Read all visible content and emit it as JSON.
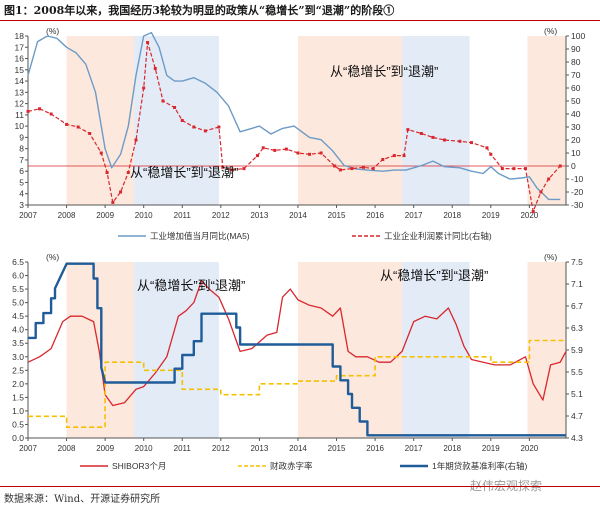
{
  "title": "图1：2008年以来，我国经历3轮较为明显的政策从“稳增长”到“退潮”的阶段①",
  "source": "数据来源：Wind、开源证券研究所",
  "watermark": "赵伟宏观探索",
  "colors": {
    "shade_peach": "#fce8dc",
    "shade_blue": "#e3ebf7",
    "blue_line": "#6d9bc7",
    "red_line": "#d9272e",
    "pink_line": "#f08585",
    "gold": "#f5c000",
    "navy": "#1f5c99"
  },
  "chart_data": [
    {
      "type": "line",
      "id": "top",
      "x_ticks": [
        "2007",
        "2008",
        "2009",
        "2010",
        "2011",
        "2012",
        "2013",
        "2014",
        "2015",
        "2016",
        "2017",
        "2018",
        "2019",
        "2020"
      ],
      "xlim": [
        2007,
        2020.95
      ],
      "left_axis": {
        "unit": "(%)",
        "ylim": [
          3,
          18
        ],
        "ticks": [
          3,
          4,
          5,
          6,
          7,
          8,
          9,
          10,
          11,
          12,
          13,
          14,
          15,
          16,
          17,
          18
        ]
      },
      "right_axis": {
        "unit": "(%)",
        "ylim": [
          -30,
          100
        ],
        "ticks": [
          -30,
          -20,
          -10,
          0,
          10,
          20,
          30,
          40,
          50,
          60,
          70,
          80,
          90,
          100
        ]
      },
      "reference_line_right": 0,
      "annotations": [
        "从“稳增长”到“退潮”",
        "从“稳增长”到“退潮”"
      ],
      "shaded_periods": [
        {
          "from": 2008.0,
          "to": 2009.75,
          "color": "peach"
        },
        {
          "from": 2009.75,
          "to": 2011.95,
          "color": "blue"
        },
        {
          "from": 2014.0,
          "to": 2016.7,
          "color": "peach"
        },
        {
          "from": 2016.7,
          "to": 2018.45,
          "color": "blue"
        },
        {
          "from": 2019.95,
          "to": 2020.95,
          "color": "peach"
        }
      ],
      "series": [
        {
          "name": "工业增加值当月同比(MA5)",
          "axis": "left",
          "style": "solid",
          "x": [
            2007.0,
            2007.25,
            2007.5,
            2007.75,
            2008.0,
            2008.25,
            2008.5,
            2008.75,
            2009.0,
            2009.17,
            2009.4,
            2009.6,
            2009.8,
            2010.0,
            2010.2,
            2010.4,
            2010.6,
            2010.8,
            2011.0,
            2011.3,
            2011.6,
            2011.9,
            2012.2,
            2012.5,
            2012.8,
            2013.0,
            2013.3,
            2013.6,
            2013.9,
            2014.3,
            2014.6,
            2014.9,
            2015.2,
            2015.5,
            2015.8,
            2016.2,
            2016.5,
            2016.8,
            2017.2,
            2017.5,
            2017.8,
            2018.2,
            2018.5,
            2018.8,
            2019.0,
            2019.2,
            2019.5,
            2019.8,
            2020.0,
            2020.2,
            2020.35,
            2020.5,
            2020.8
          ],
          "y": [
            14.5,
            17.5,
            18.0,
            17.8,
            17.0,
            16.5,
            15.5,
            13.0,
            8.0,
            6.3,
            7.5,
            10.0,
            14.5,
            18.0,
            18.3,
            17.0,
            14.5,
            14.0,
            14.0,
            14.3,
            13.8,
            13.0,
            11.8,
            9.5,
            9.8,
            10.0,
            9.3,
            9.8,
            10.0,
            9.0,
            8.8,
            7.8,
            6.5,
            6.2,
            6.1,
            6.0,
            6.1,
            6.1,
            6.5,
            6.9,
            6.4,
            6.3,
            6.0,
            5.8,
            6.4,
            5.8,
            5.3,
            5.4,
            5.5,
            4.5,
            4.0,
            3.5,
            3.5
          ]
        },
        {
          "name": "工业企业利润累计同比(右轴)",
          "axis": "right",
          "style": "dashed",
          "x": [
            2007.0,
            2007.3,
            2007.6,
            2008.0,
            2008.3,
            2008.6,
            2008.9,
            2009.05,
            2009.2,
            2009.4,
            2009.6,
            2009.8,
            2010.0,
            2010.1,
            2010.3,
            2010.5,
            2010.8,
            2011.0,
            2011.3,
            2011.6,
            2011.95,
            2012.05,
            2012.3,
            2012.6,
            2012.95,
            2013.1,
            2013.4,
            2013.7,
            2014.0,
            2014.3,
            2014.6,
            2014.95,
            2015.1,
            2015.4,
            2015.7,
            2015.95,
            2016.2,
            2016.5,
            2016.75,
            2016.85,
            2017.2,
            2017.5,
            2017.8,
            2018.2,
            2018.5,
            2018.9,
            2019.0,
            2019.3,
            2019.6,
            2019.9,
            2020.1,
            2020.3,
            2020.5,
            2020.8
          ],
          "y": [
            42,
            44,
            40,
            32,
            30,
            25,
            10,
            -5,
            -28,
            -20,
            -5,
            20,
            60,
            95,
            75,
            50,
            45,
            35,
            30,
            27,
            30,
            -1,
            -3,
            -2,
            8,
            14,
            12,
            13,
            10,
            9,
            10,
            0,
            -3,
            -2,
            -1,
            -2,
            5,
            8,
            8,
            28,
            25,
            22,
            20,
            19,
            18,
            14,
            9,
            -2,
            -2,
            -2,
            -35,
            -20,
            -10,
            0
          ]
        }
      ]
    },
    {
      "type": "line",
      "id": "bottom",
      "x_ticks": [
        "2007",
        "2008",
        "2009",
        "2010",
        "2011",
        "2012",
        "2013",
        "2014",
        "2015",
        "2016",
        "2017",
        "2018",
        "2019",
        "2020"
      ],
      "xlim": [
        2007,
        2020.95
      ],
      "left_axis": {
        "unit": "(%)",
        "ylim": [
          0,
          6.5
        ],
        "ticks": [
          0.0,
          0.5,
          1.0,
          1.5,
          2.0,
          2.5,
          3.0,
          3.5,
          4.0,
          4.5,
          5.0,
          5.5,
          6.0,
          6.5
        ]
      },
      "right_axis": {
        "unit": "(%)",
        "ylim": [
          4.3,
          7.5
        ],
        "ticks": [
          4.3,
          4.7,
          5.1,
          5.5,
          5.9,
          6.3,
          6.7,
          7.1,
          7.5
        ]
      },
      "annotations": [
        "从“稳增长”到“退潮”",
        "从“稳增长”到“退潮”"
      ],
      "shaded_periods": [
        {
          "from": 2008.0,
          "to": 2009.75,
          "color": "peach"
        },
        {
          "from": 2009.75,
          "to": 2011.95,
          "color": "blue"
        },
        {
          "from": 2014.0,
          "to": 2016.7,
          "color": "peach"
        },
        {
          "from": 2016.7,
          "to": 2018.45,
          "color": "blue"
        },
        {
          "from": 2019.95,
          "to": 2020.95,
          "color": "peach"
        }
      ],
      "series": [
        {
          "name": "SHIBOR3个月",
          "axis": "left",
          "style": "solid",
          "x": [
            2007.0,
            2007.3,
            2007.6,
            2007.9,
            2008.1,
            2008.4,
            2008.7,
            2008.85,
            2009.0,
            2009.2,
            2009.5,
            2009.8,
            2010.0,
            2010.3,
            2010.6,
            2010.9,
            2011.1,
            2011.3,
            2011.5,
            2011.7,
            2011.95,
            2012.2,
            2012.5,
            2012.8,
            2013.2,
            2013.45,
            2013.6,
            2013.8,
            2014.0,
            2014.3,
            2014.6,
            2014.9,
            2015.1,
            2015.3,
            2015.5,
            2015.8,
            2016.1,
            2016.4,
            2016.7,
            2017.0,
            2017.3,
            2017.6,
            2017.9,
            2018.1,
            2018.3,
            2018.5,
            2018.8,
            2019.1,
            2019.5,
            2019.9,
            2020.1,
            2020.35,
            2020.55,
            2020.8,
            2020.95
          ],
          "y": [
            2.8,
            3.0,
            3.3,
            4.3,
            4.5,
            4.5,
            4.3,
            3.2,
            1.6,
            1.2,
            1.3,
            1.8,
            1.9,
            2.4,
            3.0,
            4.5,
            4.7,
            5.0,
            5.8,
            5.5,
            5.2,
            4.4,
            3.2,
            3.3,
            3.8,
            3.9,
            5.2,
            5.5,
            5.1,
            4.9,
            4.8,
            4.5,
            4.8,
            3.2,
            3.0,
            3.0,
            2.8,
            2.8,
            3.2,
            4.3,
            4.5,
            4.4,
            4.8,
            4.2,
            3.4,
            2.9,
            2.8,
            2.7,
            2.7,
            3.0,
            2.0,
            1.4,
            2.7,
            2.8,
            3.2
          ]
        },
        {
          "name": "财政赤字率",
          "axis": "left",
          "style": "dashed",
          "x": [
            2007.0,
            2008.0,
            2008.0,
            2009.0,
            2009.0,
            2010.0,
            2010.0,
            2011.0,
            2011.0,
            2012.0,
            2012.0,
            2013.0,
            2013.0,
            2014.0,
            2014.0,
            2015.0,
            2015.0,
            2016.0,
            2016.0,
            2019.0,
            2019.0,
            2020.0,
            2020.0,
            2020.95
          ],
          "y": [
            0.8,
            0.8,
            0.4,
            0.4,
            2.8,
            2.8,
            2.5,
            2.5,
            1.8,
            1.8,
            1.6,
            1.6,
            2.0,
            2.0,
            2.1,
            2.1,
            2.3,
            2.3,
            3.0,
            3.0,
            2.8,
            2.8,
            3.6,
            3.6
          ]
        },
        {
          "name": "1年期贷款基准利率(右轴)",
          "axis": "right",
          "style": "solid",
          "x": [
            2007.0,
            2007.2,
            2007.2,
            2007.4,
            2007.4,
            2007.6,
            2007.6,
            2007.7,
            2007.7,
            2008.0,
            2008.7,
            2008.7,
            2008.8,
            2008.8,
            2008.9,
            2008.9,
            2009.0,
            2010.8,
            2010.8,
            2011.0,
            2011.0,
            2011.3,
            2011.3,
            2011.5,
            2011.5,
            2012.4,
            2012.4,
            2012.5,
            2012.5,
            2014.9,
            2014.9,
            2015.1,
            2015.1,
            2015.3,
            2015.3,
            2015.4,
            2015.4,
            2015.6,
            2015.6,
            2015.8,
            2015.8,
            2020.95
          ],
          "y": [
            6.12,
            6.12,
            6.39,
            6.39,
            6.57,
            6.57,
            6.84,
            6.84,
            7.02,
            7.47,
            7.47,
            7.2,
            7.2,
            6.66,
            6.66,
            5.58,
            5.31,
            5.31,
            5.56,
            5.56,
            5.81,
            5.81,
            6.06,
            6.06,
            6.56,
            6.56,
            6.31,
            6.31,
            6.0,
            6.0,
            5.6,
            5.6,
            5.35,
            5.35,
            5.1,
            5.1,
            4.85,
            4.85,
            4.6,
            4.6,
            4.35,
            4.35
          ]
        }
      ]
    }
  ]
}
